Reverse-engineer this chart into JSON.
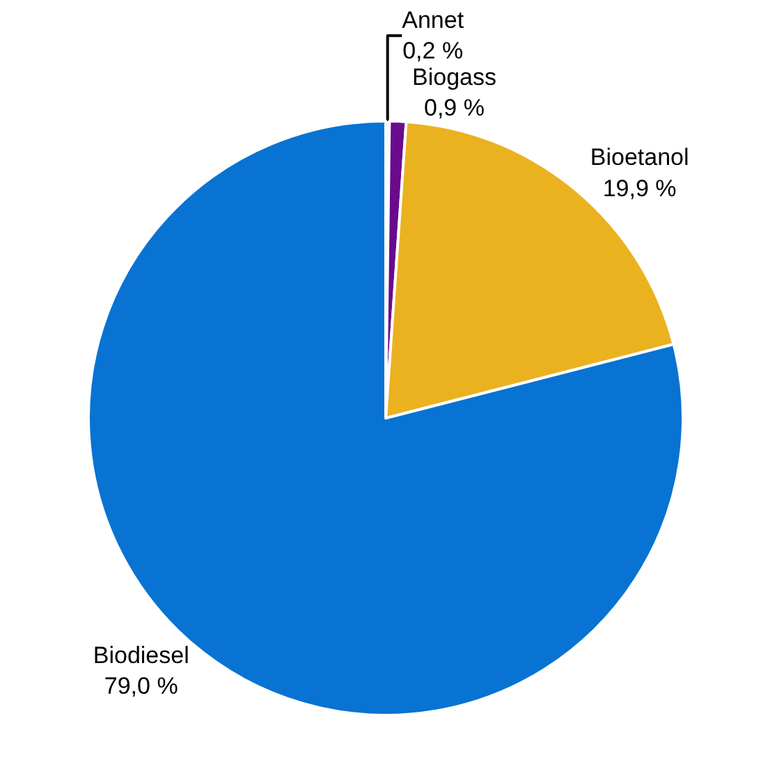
{
  "chart_data": {
    "type": "pie",
    "categories": [
      "Annet",
      "Biogass",
      "Bioetanol",
      "Biodiesel"
    ],
    "values": [
      0.2,
      0.9,
      19.9,
      79.0
    ],
    "colors": [
      "#f2f2f2",
      "#6a0a8c",
      "#ebb220",
      "#0873d2"
    ],
    "value_labels": [
      "0,2 %",
      "0,9 %",
      "19,9 %",
      "79,0 %"
    ],
    "legend": false
  }
}
